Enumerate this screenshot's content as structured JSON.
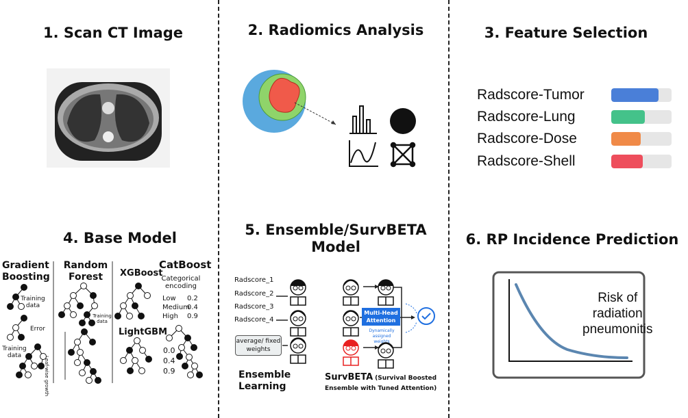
{
  "panels": {
    "p1": {
      "title": "1. Scan CT Image"
    },
    "p2": {
      "title": "2. Radiomics Analysis"
    },
    "p3": {
      "title": "3. Feature Selection",
      "features": [
        {
          "label": "Radscore-Tumor",
          "fill": 0.78,
          "color": "#4a7fd8"
        },
        {
          "label": "Radscore-Lung",
          "fill": 0.56,
          "color": "#44c28a"
        },
        {
          "label": "Radscore-Dose",
          "fill": 0.49,
          "color": "#f08a48"
        },
        {
          "label": "Radscore-Shell",
          "fill": 0.52,
          "color": "#ee4e5c"
        }
      ]
    },
    "p4": {
      "title": "4. Base Model",
      "gb": "Gradient Boosting",
      "gb_train1": "Training data",
      "gb_error": "Error",
      "gb_train2": "Training data",
      "rf": "Random Forest",
      "rf_train": "Training data",
      "leaf": "Leaf-wise growth",
      "xgb": "XGBoost",
      "lgbm": "LightGBM",
      "cat": "CatBoost",
      "cat_enc": "Categorical encoding",
      "cat_rows": [
        [
          "Low",
          "0.2"
        ],
        [
          "Medium",
          "0.4"
        ],
        [
          "High",
          "0.9"
        ]
      ],
      "lgbm_vals": [
        "0.0",
        "0.4",
        "0.9"
      ]
    },
    "p5": {
      "title1": "5. Ensemble/SurvBETA",
      "title2": "Model",
      "radscores": [
        "Radscore_1",
        "Radscore_2",
        "Radscore_3",
        "Radscore_4"
      ],
      "avg": "average/ fixed weights",
      "ens1": "Ensemble",
      "ens2": "Learning",
      "mha": "Multi-Head Attention",
      "dyn": "Dynamically assigned weights",
      "sb": "SurvBETA",
      "sb_paren1": "(Survival Boosted",
      "sb_paren2": "Ensemble with Tuned Attention)",
      "accent": "#1f6fe0"
    },
    "p6": {
      "title": "6. RP Incidence Prediction",
      "curve_label": [
        "Risk of",
        "radiation",
        "pneumonitis"
      ],
      "curve_color": "#5b86b0"
    }
  }
}
